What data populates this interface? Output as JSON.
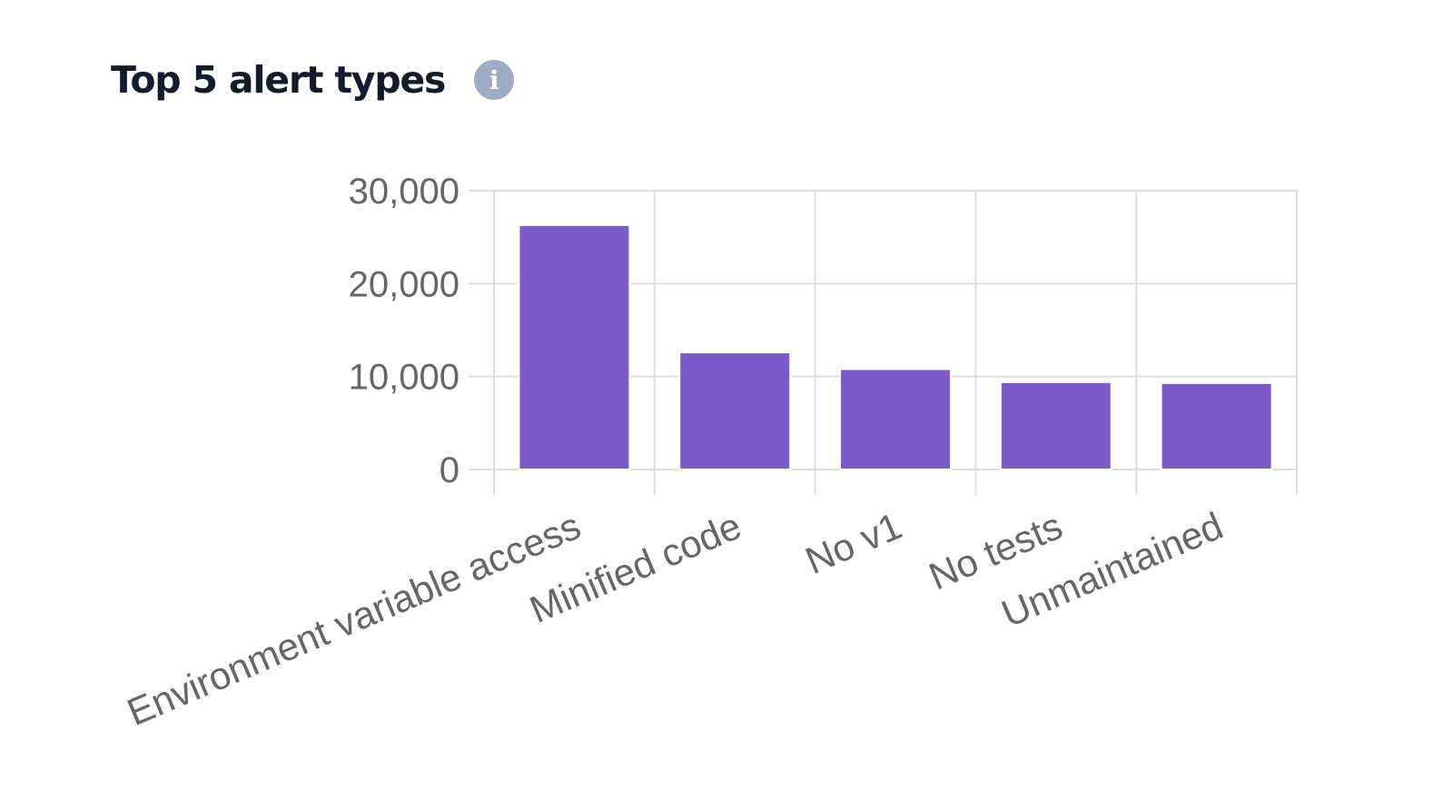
{
  "header": {
    "title": "Top 5 alert types",
    "info_icon": "info-icon",
    "info_glyph": "i"
  },
  "colors": {
    "bar": "#7b5bcc",
    "grid": "#dddddd",
    "text": "#666666",
    "title": "#141c2c",
    "info": "#9eabc2"
  },
  "chart_data": {
    "type": "bar",
    "categories": [
      "Environment variable access",
      "Minified code",
      "No v1",
      "No tests",
      "Unmaintained"
    ],
    "values": [
      26300,
      12600,
      10800,
      9400,
      9300
    ],
    "ylim": [
      0,
      30000
    ],
    "yticks": [
      0,
      10000,
      20000,
      30000
    ],
    "ytick_labels": [
      "0",
      "10,000",
      "20,000",
      "30,000"
    ],
    "grid": true,
    "legend": "none",
    "title": "",
    "xlabel": "",
    "ylabel": ""
  }
}
